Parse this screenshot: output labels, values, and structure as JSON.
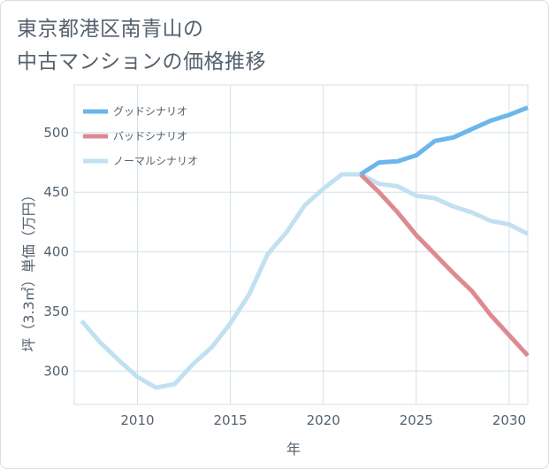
{
  "title": {
    "line1": "東京都港区南青山の",
    "line2": "中古マンションの価格推移"
  },
  "chart_data": {
    "type": "line",
    "xlabel": "年",
    "ylabel": "坪（3.3㎡）単価（万円）",
    "xlim": [
      2006.6,
      2031
    ],
    "ylim": [
      272,
      540
    ],
    "xticks": [
      2010,
      2015,
      2020,
      2025,
      2030
    ],
    "yticks": [
      300,
      350,
      400,
      450,
      500
    ],
    "grid": true,
    "legend_position": "top-left",
    "series": [
      {
        "name": "グッドシナリオ",
        "color": "#6bb6ea",
        "x": [
          2022,
          2023,
          2024,
          2025,
          2026,
          2027,
          2028,
          2029,
          2030,
          2031
        ],
        "y": [
          465,
          475,
          476,
          481,
          493,
          496,
          503,
          510,
          515,
          521
        ]
      },
      {
        "name": "バッドシナリオ",
        "color": "#dd8a90",
        "x": [
          2022,
          2023,
          2024,
          2025,
          2026,
          2027,
          2028,
          2029,
          2030,
          2031
        ],
        "y": [
          465,
          450,
          433,
          414,
          398,
          382,
          367,
          347,
          330,
          313
        ]
      },
      {
        "name": "ノーマルシナリオ",
        "color": "#c1e1f1",
        "x": [
          2007,
          2008,
          2009,
          2010,
          2011,
          2012,
          2013,
          2014,
          2015,
          2016,
          2017,
          2018,
          2019,
          2020,
          2021,
          2022,
          2023,
          2024,
          2025,
          2026,
          2027,
          2028,
          2029,
          2030,
          2031
        ],
        "y": [
          342,
          324,
          309,
          295,
          286,
          289,
          306,
          320,
          340,
          364,
          398,
          416,
          439,
          453,
          465,
          465,
          457,
          455,
          447,
          445,
          438,
          433,
          426,
          423,
          415
        ]
      }
    ]
  }
}
